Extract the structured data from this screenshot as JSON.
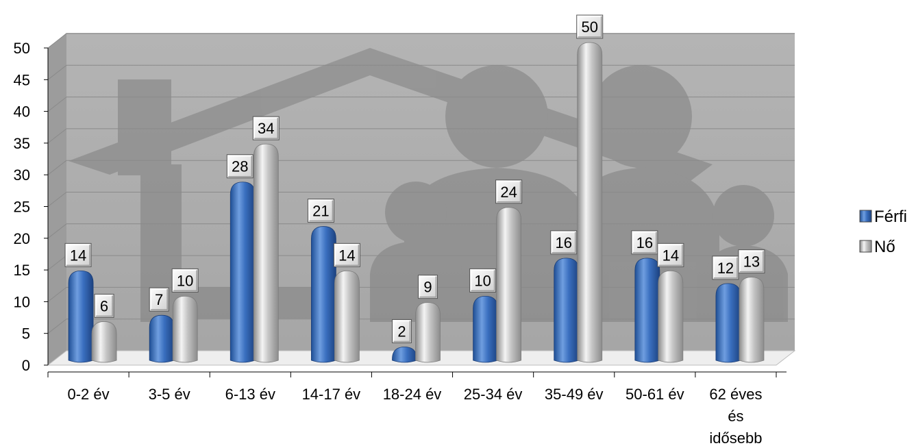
{
  "chart_data": {
    "type": "bar",
    "categories": [
      "0-2 év",
      "3-5 év",
      "6-13 év",
      "14-17 év",
      "18-24 év",
      "25-34 év",
      "35-49 év",
      "50-61 év",
      [
        "62 éves",
        "és",
        "idősebb"
      ]
    ],
    "series": [
      {
        "name": "Férfi",
        "values": [
          14,
          7,
          28,
          21,
          2,
          10,
          16,
          16,
          12
        ],
        "color": "#3a6fbf"
      },
      {
        "name": "Nő",
        "values": [
          6,
          10,
          34,
          14,
          9,
          24,
          50,
          14,
          13
        ],
        "color": "#b9b9b9"
      }
    ],
    "ylim": [
      0,
      50
    ],
    "yticks": [
      0,
      5,
      10,
      15,
      20,
      25,
      30,
      35,
      40,
      45,
      50
    ],
    "grid": true,
    "legend_position": "right",
    "background_icon": "family-house-icon"
  }
}
